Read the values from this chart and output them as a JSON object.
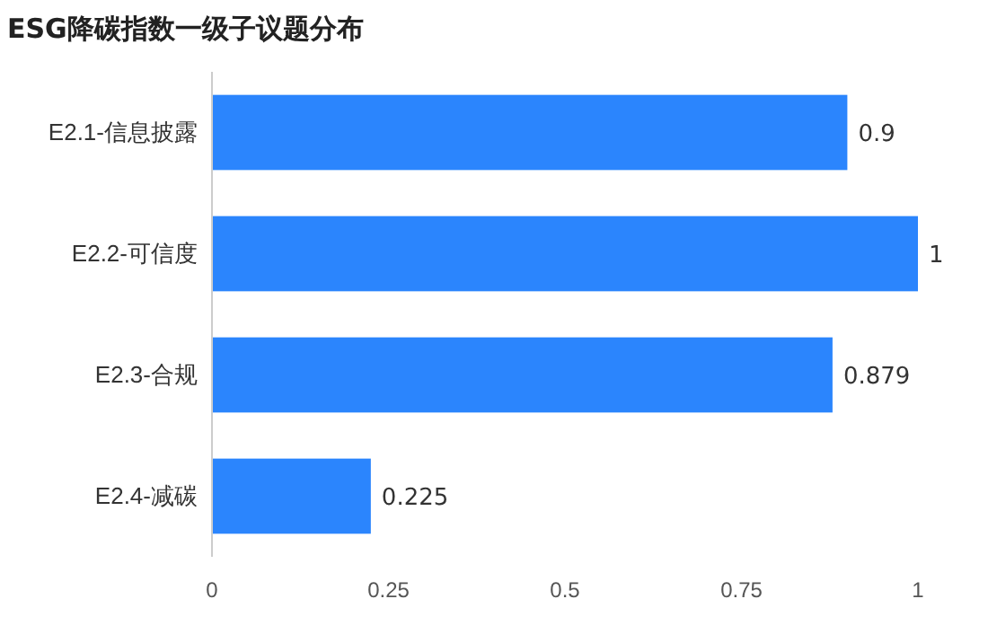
{
  "chart_data": {
    "type": "bar",
    "title": "ESG降碳指数一级子议题分布",
    "orientation": "horizontal",
    "categories": [
      "E2.1-信息披露",
      "E2.2-可信度",
      "E2.3-合规",
      "E2.4-减碳"
    ],
    "values": [
      0.9,
      1,
      0.879,
      0.225
    ],
    "color": "#2b85fd",
    "xlim": [
      0,
      1
    ],
    "xticks": [
      0,
      0.25,
      0.5,
      0.75,
      1
    ],
    "data_labels": true
  }
}
